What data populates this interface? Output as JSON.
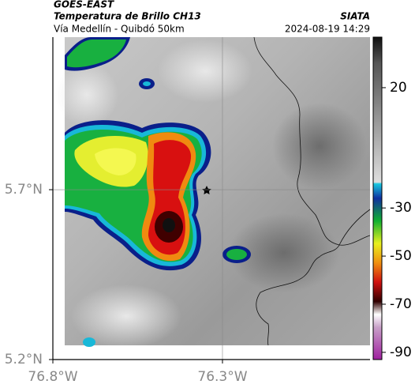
{
  "header": {
    "title": "GOES-EAST",
    "subtitle": "Temperatura de Brillo CH13",
    "region": "Vía Medellín - Quibdó 50km",
    "source": "SIATA",
    "timestamp": "2024-08-19 14:29"
  },
  "map": {
    "xlim": [
      -76.8,
      -75.865
    ],
    "ylim": [
      5.2,
      6.149
    ],
    "xticks": [
      {
        "value": -76.8,
        "label": "76.8°W"
      },
      {
        "value": -76.3,
        "label": "76.3°W"
      }
    ],
    "yticks": [
      {
        "value": 5.2,
        "label": "5.2°N"
      },
      {
        "value": 5.7,
        "label": "5.7°N"
      }
    ],
    "grid": true
  },
  "colorbar": {
    "range": [
      -93,
      41
    ],
    "ticks": [
      20,
      -30,
      -50,
      -70,
      -90
    ]
  }
}
